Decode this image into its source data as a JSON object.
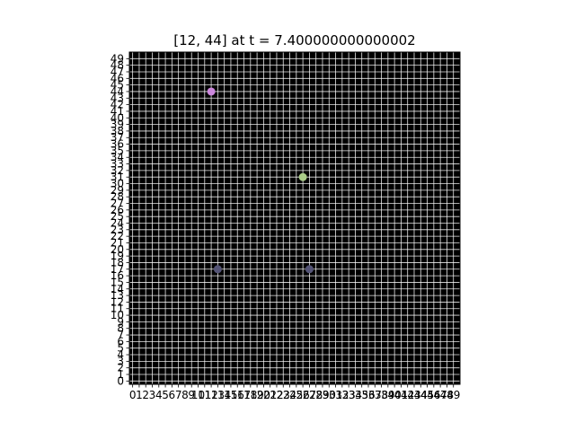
{
  "chart_data": {
    "type": "scatter",
    "title": "[12, 44] at t = 7.400000000000002",
    "xlabel": "",
    "ylabel": "",
    "xlim": [
      -0.5,
      50
    ],
    "ylim": [
      -0.5,
      50
    ],
    "xticks": [
      0,
      1,
      2,
      3,
      4,
      5,
      6,
      7,
      8,
      9,
      10,
      11,
      12,
      13,
      14,
      15,
      16,
      17,
      18,
      19,
      20,
      21,
      22,
      23,
      24,
      25,
      26,
      27,
      28,
      29,
      30,
      31,
      32,
      33,
      34,
      35,
      36,
      37,
      38,
      39,
      40,
      41,
      42,
      43,
      44,
      45,
      46,
      47,
      48,
      49
    ],
    "yticks": [
      0,
      1,
      2,
      3,
      4,
      5,
      6,
      7,
      8,
      9,
      10,
      11,
      12,
      13,
      14,
      15,
      16,
      17,
      18,
      19,
      20,
      21,
      22,
      23,
      24,
      25,
      26,
      27,
      28,
      29,
      30,
      31,
      32,
      33,
      34,
      35,
      36,
      37,
      38,
      39,
      40,
      41,
      42,
      43,
      44,
      45,
      46,
      47,
      48,
      49
    ],
    "grid": true,
    "background": "#000000",
    "grid_color": "#ffffff",
    "points": [
      {
        "x": 12,
        "y": 44,
        "color": "#cc88dd"
      },
      {
        "x": 26,
        "y": 31,
        "color": "#aacc88"
      },
      {
        "x": 13,
        "y": 17,
        "color": "#555577"
      },
      {
        "x": 27,
        "y": 17,
        "color": "#555577"
      }
    ]
  }
}
